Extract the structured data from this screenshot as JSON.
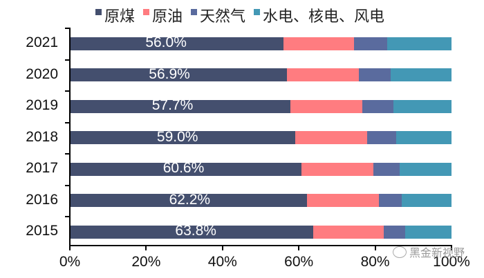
{
  "chart_data": {
    "type": "bar",
    "orientation": "horizontal",
    "stacked": "percent",
    "title": "",
    "xlabel": "",
    "ylabel": "",
    "categories": [
      "2021",
      "2020",
      "2019",
      "2018",
      "2017",
      "2016",
      "2015"
    ],
    "series": [
      {
        "name": "原煤",
        "color": "#444F6E",
        "values": [
          56.0,
          56.9,
          57.7,
          59.0,
          60.6,
          62.2,
          63.8
        ]
      },
      {
        "name": "原油",
        "color": "#FF7C80",
        "values": [
          18.5,
          18.8,
          19.0,
          18.9,
          18.9,
          18.8,
          18.4
        ]
      },
      {
        "name": "天然气",
        "color": "#5A6B9E",
        "values": [
          8.7,
          8.3,
          8.0,
          7.6,
          6.9,
          6.0,
          5.7
        ]
      },
      {
        "name": "水电、核电、风电",
        "color": "#4398B5",
        "values": [
          16.8,
          16.0,
          15.3,
          14.5,
          13.6,
          13.0,
          12.1
        ]
      }
    ],
    "data_labels": [
      "56.0%",
      "56.9%",
      "57.7%",
      "59.0%",
      "60.6%",
      "62.2%",
      "63.8%"
    ],
    "xticks": [
      "0%",
      "20%",
      "40%",
      "60%",
      "80%",
      "100%"
    ],
    "xlim": [
      0,
      100
    ],
    "legend_position": "top",
    "grid": false
  },
  "legend": [
    "原煤",
    "原油",
    "天然气",
    "水电、核电、风电"
  ],
  "watermark": "黑金新视野"
}
